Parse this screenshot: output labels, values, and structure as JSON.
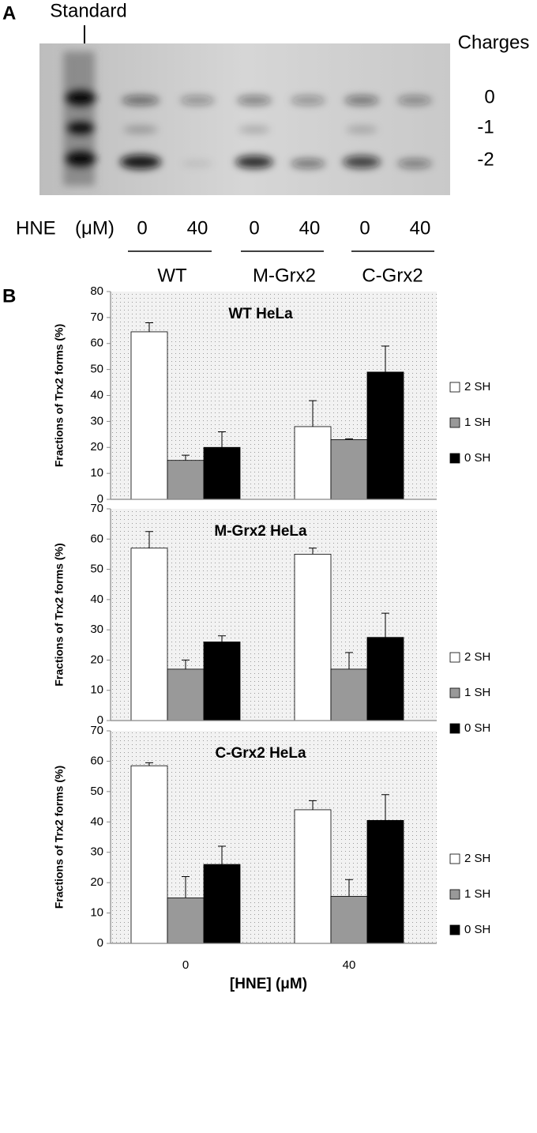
{
  "panel_a": {
    "label": "A",
    "standard": "Standard",
    "charges_title": "Charges",
    "charges": [
      "0",
      "-1",
      "-2"
    ],
    "hne": "HNE",
    "unit": "(μM)",
    "doses": [
      "0",
      "40",
      "0",
      "40",
      "0",
      "40"
    ],
    "groups": [
      "WT",
      "M-Grx2",
      "C-Grx2"
    ]
  },
  "panel_b_label": "B",
  "chart_data": [
    {
      "type": "bar",
      "title": "WT HeLa",
      "ylabel": "Fractions of Trx2 forms (%)",
      "categories": [
        null,
        null
      ],
      "ylim": [
        0,
        80
      ],
      "yticks": [
        0,
        10,
        20,
        30,
        40,
        50,
        60,
        70,
        80
      ],
      "legend": "right",
      "series": [
        {
          "name": "2 SH",
          "color": "#ffffff",
          "values": [
            64.5,
            28
          ],
          "errors": [
            3.5,
            10
          ]
        },
        {
          "name": "1 SH",
          "color": "#999999",
          "values": [
            15,
            23
          ],
          "errors": [
            2,
            0.3
          ]
        },
        {
          "name": "0 SH",
          "color": "#000000",
          "values": [
            20,
            49
          ],
          "errors": [
            6,
            10
          ]
        }
      ]
    },
    {
      "type": "bar",
      "title": "M-Grx2 HeLa",
      "ylabel": "Fractions of Trx2 forms (%)",
      "categories": [
        null,
        null
      ],
      "ylim": [
        0,
        70
      ],
      "yticks": [
        0,
        10,
        20,
        30,
        40,
        50,
        60,
        70
      ],
      "legend": "right",
      "series": [
        {
          "name": "2 SH",
          "color": "#ffffff",
          "values": [
            57,
            55
          ],
          "errors": [
            5.5,
            2
          ]
        },
        {
          "name": "1 SH",
          "color": "#999999",
          "values": [
            17,
            17
          ],
          "errors": [
            3,
            5.5
          ]
        },
        {
          "name": "0 SH",
          "color": "#000000",
          "values": [
            26,
            27.5
          ],
          "errors": [
            2,
            8
          ]
        }
      ]
    },
    {
      "type": "bar",
      "title": "C-Grx2 HeLa",
      "ylabel": "Fractions of Trx2 forms (%)",
      "xlabel": "[HNE] (μM)",
      "categories": [
        "0",
        "40"
      ],
      "ylim": [
        0,
        70
      ],
      "yticks": [
        0,
        10,
        20,
        30,
        40,
        50,
        60,
        70
      ],
      "legend": "right",
      "series": [
        {
          "name": "2 SH",
          "color": "#ffffff",
          "values": [
            58.5,
            44
          ],
          "errors": [
            1,
            3
          ]
        },
        {
          "name": "1 SH",
          "color": "#999999",
          "values": [
            15,
            15.5
          ],
          "errors": [
            7,
            5.5
          ]
        },
        {
          "name": "0 SH",
          "color": "#000000",
          "values": [
            26,
            40.5
          ],
          "errors": [
            6,
            8.5
          ]
        }
      ]
    }
  ]
}
